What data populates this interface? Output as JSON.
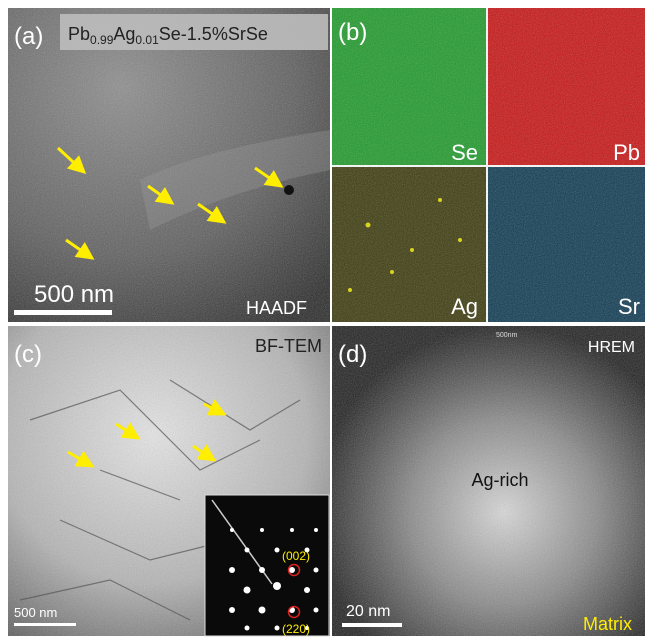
{
  "panel_a": {
    "label": "(a)",
    "composition": [
      "Pb",
      "0.99",
      "Ag",
      "0.01",
      "Se-1.5%SrSe"
    ],
    "scale_bar": "500 nm",
    "mode": "HAADF"
  },
  "panel_b": {
    "label": "(b)",
    "maps": [
      "Se",
      "Pb",
      "Ag",
      "Sr"
    ]
  },
  "panel_c": {
    "label": "(c)",
    "mode": "BF-TEM",
    "scale_bar": "500 nm",
    "spots": [
      "(002)",
      "(220)"
    ]
  },
  "panel_d": {
    "label": "(d)",
    "mode": "HREM",
    "corner_text": "500nm",
    "region": "Ag-rich",
    "scale_bar": "20 nm",
    "matrix": "Matrix"
  }
}
